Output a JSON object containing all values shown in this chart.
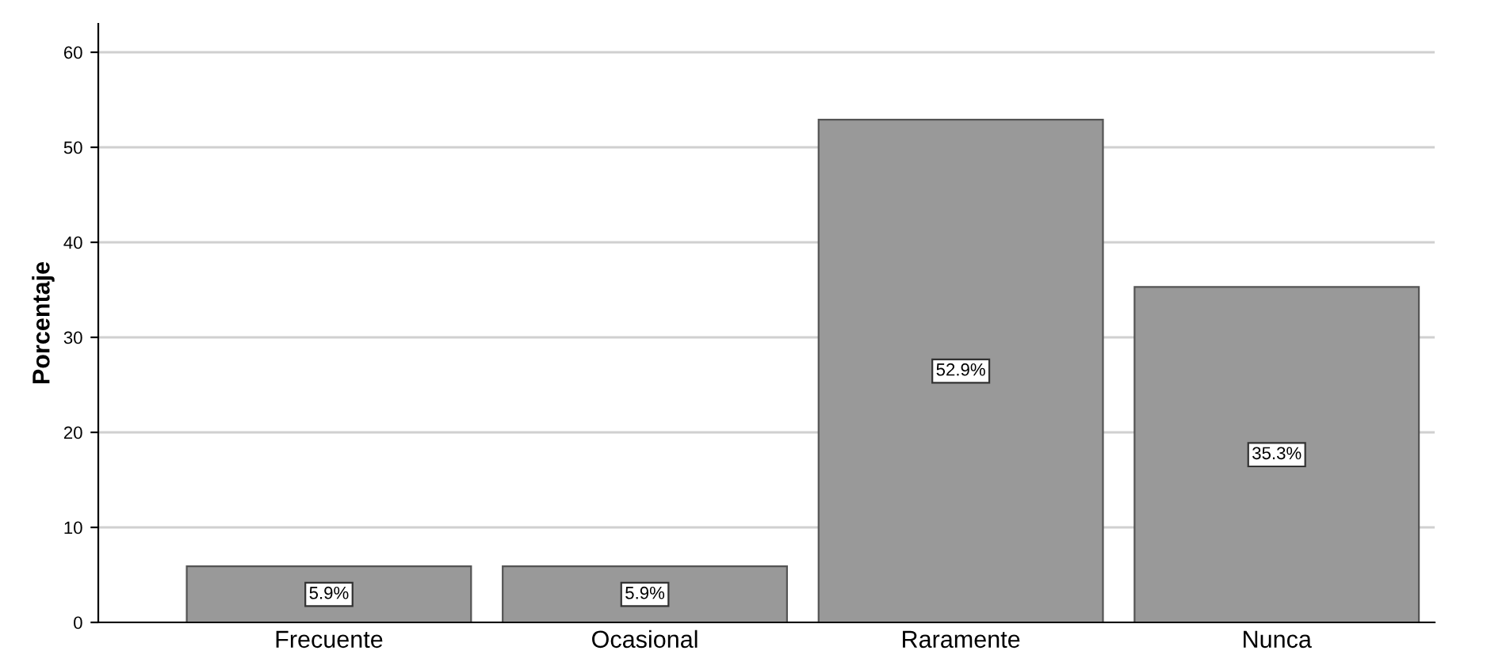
{
  "chart_data": {
    "type": "bar",
    "ylabel": "Porcentaje",
    "categories": [
      "Frecuente",
      "Ocasional",
      "Raramente",
      "Nunca"
    ],
    "values": [
      5.9,
      5.9,
      52.9,
      35.3
    ],
    "value_labels": [
      "5.9%",
      "5.9%",
      "52.9%",
      "35.3%"
    ],
    "color": "#999999",
    "ylim": [
      0,
      63
    ],
    "yticks": [
      0,
      10,
      20,
      30,
      40,
      50,
      60
    ],
    "grid": "y",
    "legend": false
  }
}
